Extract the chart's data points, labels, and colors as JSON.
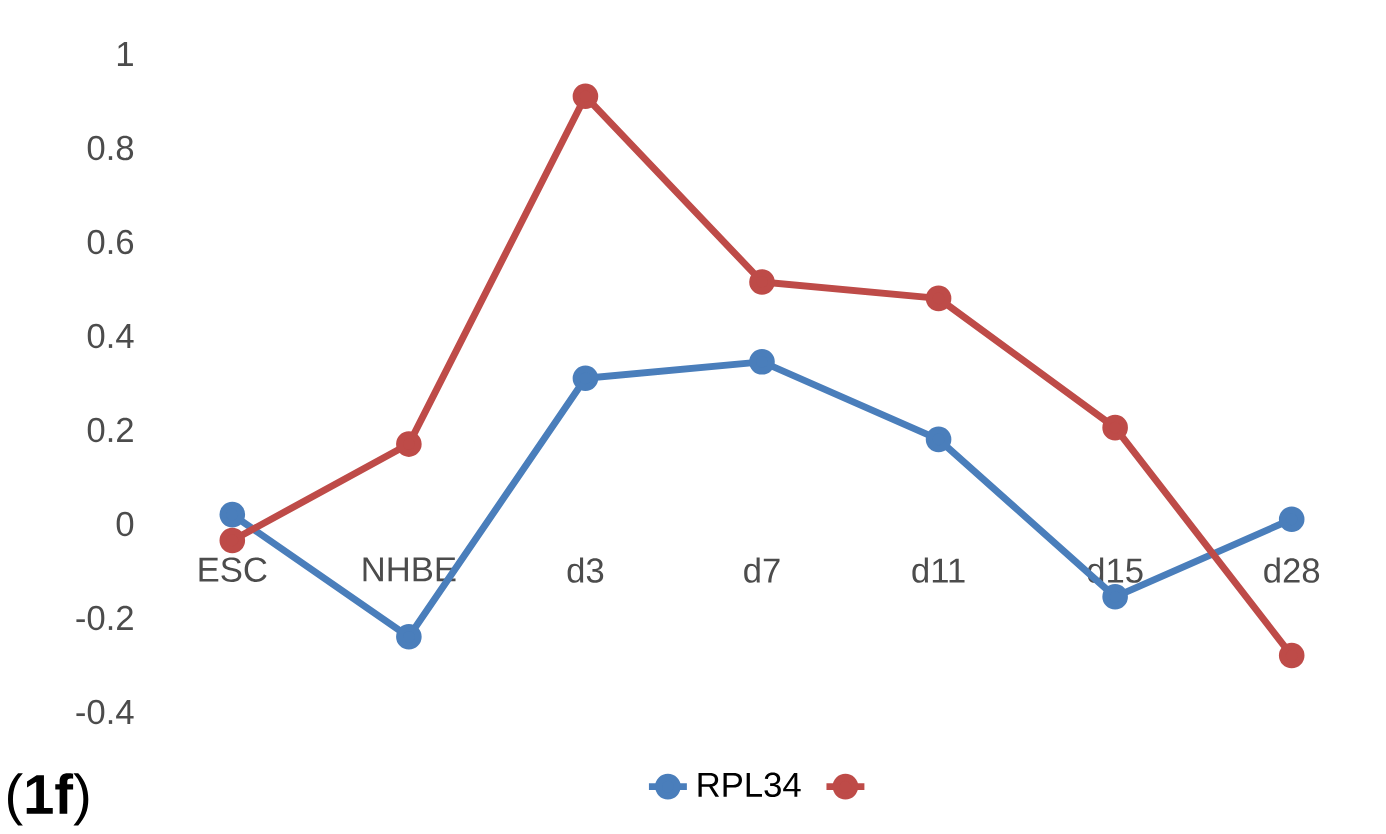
{
  "chart_data": {
    "type": "line",
    "categories": [
      "ESC",
      "NHBE",
      "d3",
      "d7",
      "d11",
      "d15",
      "d28"
    ],
    "series": [
      {
        "name": "RPL34",
        "color": "#4a7ebb",
        "values": [
          0.02,
          -0.24,
          0.31,
          0.345,
          0.18,
          -0.155,
          0.01
        ]
      },
      {
        "color": "#be4b48",
        "values": [
          -0.035,
          0.17,
          0.91,
          0.515,
          0.48,
          0.205,
          -0.28
        ]
      }
    ],
    "ylim": [
      -0.4,
      1
    ],
    "yticks": [
      -0.4,
      -0.2,
      0,
      0.2,
      0.4,
      0.6,
      0.8,
      1
    ],
    "legend": "bottom",
    "marker": "circle",
    "line_style": "solid",
    "annotations": [
      "(**1f**)"
    ]
  }
}
